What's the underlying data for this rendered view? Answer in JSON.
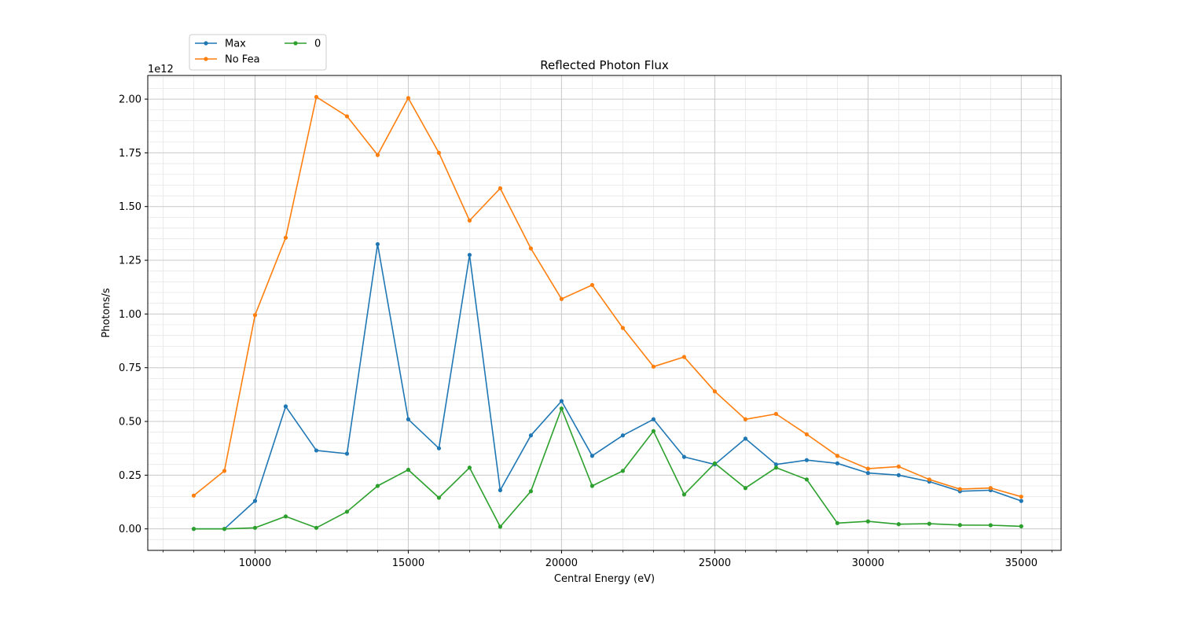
{
  "chart_data": {
    "type": "line",
    "title": "Reflected Photon Flux",
    "xlabel": "Central Energy (eV)",
    "ylabel": "Photons/s",
    "y_offset_label": "1e12",
    "y_scale": 1000000000000.0,
    "xlim": [
      6500,
      36300
    ],
    "ylim": [
      -0.1,
      2.11
    ],
    "x_ticks": [
      10000,
      15000,
      20000,
      25000,
      30000,
      35000
    ],
    "x_tick_labels": [
      "10000",
      "15000",
      "20000",
      "25000",
      "30000",
      "35000"
    ],
    "y_ticks": [
      0,
      0.25,
      0.5,
      0.75,
      1.0,
      1.25,
      1.5,
      1.75,
      2.0
    ],
    "y_tick_labels": [
      "0.00",
      "0.25",
      "0.50",
      "0.75",
      "1.00",
      "1.25",
      "1.50",
      "1.75",
      "2.00"
    ],
    "grid": true,
    "minor_grid": true,
    "legend_position": "above-left",
    "x": [
      8000,
      9000,
      10000,
      11000,
      12000,
      13000,
      14000,
      15000,
      16000,
      17000,
      18000,
      19000,
      20000,
      21000,
      22000,
      23000,
      24000,
      25000,
      26000,
      27000,
      28000,
      29000,
      30000,
      31000,
      32000,
      33000,
      34000,
      35000
    ],
    "series": [
      {
        "name": "Max",
        "color": "#1f77b4",
        "values": [
          0.0,
          0.0,
          0.13,
          0.57,
          0.365,
          0.35,
          1.325,
          0.51,
          0.375,
          1.275,
          0.18,
          0.435,
          0.595,
          0.34,
          0.435,
          0.51,
          0.335,
          0.3,
          0.42,
          0.3,
          0.32,
          0.305,
          0.26,
          0.25,
          0.22,
          0.175,
          0.18,
          0.13
        ]
      },
      {
        "name": "No Fea",
        "color": "#ff7f0e",
        "values": [
          0.155,
          0.27,
          0.995,
          1.355,
          2.01,
          1.92,
          1.74,
          2.005,
          1.75,
          1.435,
          1.585,
          1.305,
          1.07,
          1.135,
          0.935,
          0.755,
          0.8,
          0.64,
          0.51,
          0.535,
          0.44,
          0.34,
          0.28,
          0.29,
          0.23,
          0.185,
          0.19,
          0.15
        ]
      },
      {
        "name": "0",
        "color": "#2ca02c",
        "values": [
          0.0,
          0.0,
          0.005,
          0.058,
          0.005,
          0.08,
          0.2,
          0.275,
          0.145,
          0.285,
          0.01,
          0.175,
          0.56,
          0.2,
          0.27,
          0.455,
          0.16,
          0.305,
          0.19,
          0.285,
          0.23,
          0.027,
          0.035,
          0.022,
          0.024,
          0.018,
          0.017,
          0.012
        ]
      }
    ]
  }
}
